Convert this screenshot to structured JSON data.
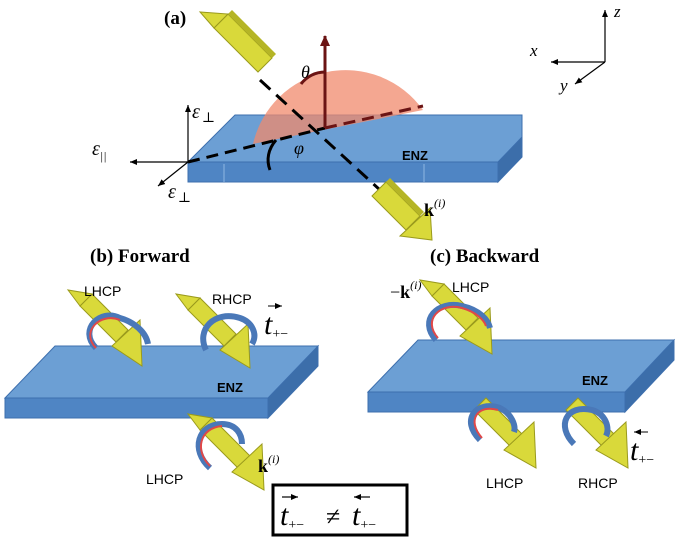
{
  "panels": {
    "a": {
      "label": "(a)"
    },
    "b": {
      "label": "(b) Forward"
    },
    "c": {
      "label": "(c) Backward"
    }
  },
  "axes": {
    "x": "x",
    "y": "y",
    "z": "z"
  },
  "eps": {
    "perp_top": "ε",
    "perp_top_sub": "⊥",
    "par": "ε",
    "par_sub": "||",
    "perp_bottom": "ε",
    "perp_bottom_sub": "⊥"
  },
  "angles": {
    "theta": "θ",
    "phi": "φ"
  },
  "slab_label": "ENZ",
  "k": {
    "main": "k",
    "sup": "(i)",
    "neg_prefix": "−",
    "neg_main": "k",
    "neg_sup": "(i)"
  },
  "polarization": {
    "b_top_left": "LHCP",
    "b_top_right": "RHCP",
    "b_bottom": "LHCP",
    "c_top": "LHCP",
    "c_bottom_left": "LHCP",
    "c_bottom_right": "RHCP"
  },
  "t": {
    "main": "t",
    "sub": "+−",
    "neq": "≠"
  },
  "colors": {
    "slab_top": "#6c9fd4",
    "slab_front": "#4f85c4",
    "slab_side": "#3c6eaa",
    "arrow_body": "#d9d93a",
    "arrow_dark": "#9a9a1c",
    "cone": "#f08a6c",
    "curl_blue": "#4a78b8",
    "curl_red": "#e04848",
    "dark_red": "#6b1414"
  }
}
